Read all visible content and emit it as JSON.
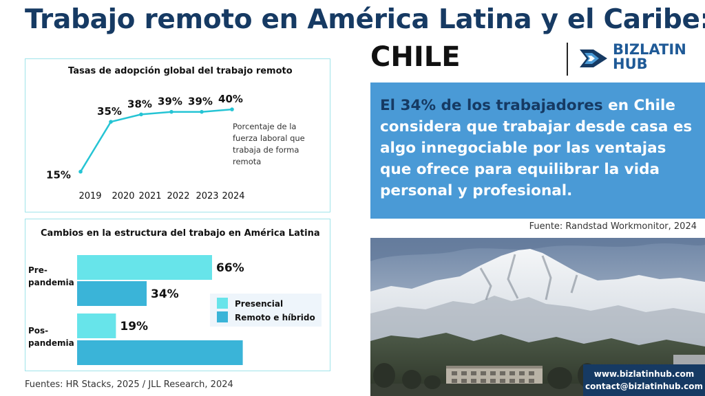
{
  "header": {
    "title": "Trabajo remoto en América Latina y el Caribe:",
    "country": "CHILE"
  },
  "brand": {
    "logo_line1": "BIZLATIN",
    "logo_line2": "HUB",
    "color_dark": "#163a63",
    "color_accent": "#4a9ad6",
    "color_teal": "#25c4d4"
  },
  "charts": {
    "adoption": {
      "title": "Tasas de adopción global del trabajo remoto",
      "legend_text": [
        "Porcentaje de la",
        "fuerza laboral que",
        "trabaja de forma",
        "remota"
      ]
    },
    "structure": {
      "title": "Cambios en la estructura del trabajo en América Latina",
      "group_labels": [
        [
          "Pre-",
          "pandemia"
        ],
        [
          "Pos-",
          "pandemia"
        ]
      ]
    }
  },
  "chart_data": [
    {
      "type": "line",
      "title": "Tasas de adopción global del trabajo remoto",
      "x": [
        "2019",
        "2020",
        "2021",
        "2022",
        "2023",
        "2024"
      ],
      "series": [
        {
          "name": "Porcentaje de la fuerza laboral que trabaja de forma remota",
          "values": [
            15,
            35,
            38,
            39,
            39,
            40
          ],
          "labels": [
            "15%",
            "35%",
            "38%",
            "39%",
            "39%",
            "40%"
          ]
        }
      ],
      "color": "#25c4d4",
      "ylim": [
        0,
        45
      ],
      "grid": false,
      "legend_position": "right"
    },
    {
      "type": "bar",
      "orientation": "horizontal",
      "title": "Cambios en la estructura del trabajo en América Latina",
      "categories": [
        "Pre-pandemia",
        "Pos-pandemia"
      ],
      "series": [
        {
          "name": "Presencial",
          "values": [
            66,
            19
          ],
          "labels": [
            "66%",
            "19%"
          ],
          "color": "#67e4ea"
        },
        {
          "name": "Remoto e híbrido",
          "values": [
            34,
            81
          ],
          "labels": [
            "34%",
            ""
          ],
          "color": "#3ab4d8"
        }
      ],
      "xlim": [
        0,
        100
      ],
      "legend_position": "right"
    }
  ],
  "sources": {
    "left": "Fuentes: HR Stacks, 2025 / JLL Research, 2024",
    "right": "Fuente: Randstad Workmonitor, 2024"
  },
  "quote": {
    "highlight": "El 34% de los trabajadores",
    "rest": " en Chile considera que trabajar desde casa es algo innegociable por las ventajas que ofrece para equilibrar la vida personal y profesional."
  },
  "contact": {
    "website": "www.bizlatinhub.com",
    "email": "contact@bizlatinhub.com"
  }
}
